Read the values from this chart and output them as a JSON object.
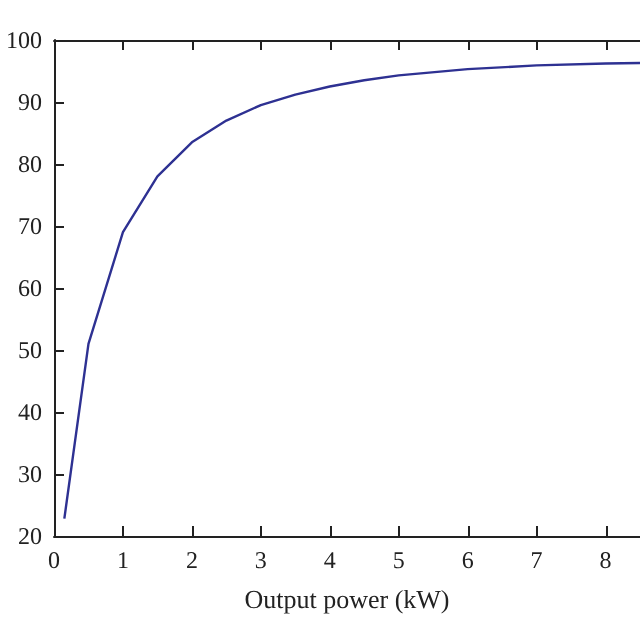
{
  "chart_data": {
    "type": "line",
    "xlabel": "Output power (kW)",
    "x": [
      0.15,
      0.5,
      1,
      1.5,
      2,
      2.5,
      3,
      3.5,
      4,
      4.5,
      5,
      6,
      7,
      8,
      8.5
    ],
    "series": [
      {
        "color": "#2e3192",
        "values": [
          22.8,
          51,
          69,
          78,
          83.5,
          87,
          89.5,
          91.2,
          92.5,
          93.5,
          94.3,
          95.3,
          95.9,
          96.2,
          96.3
        ]
      }
    ],
    "xlim": [
      0,
      8.5
    ],
    "xticks": [
      0,
      1,
      2,
      3,
      4,
      5,
      6,
      7,
      8
    ],
    "ylim": [
      20,
      100
    ],
    "yticks": [
      20,
      30,
      40,
      50,
      60,
      70,
      80,
      90,
      100
    ],
    "grid": false,
    "marker": "none",
    "line_style": "solid"
  }
}
